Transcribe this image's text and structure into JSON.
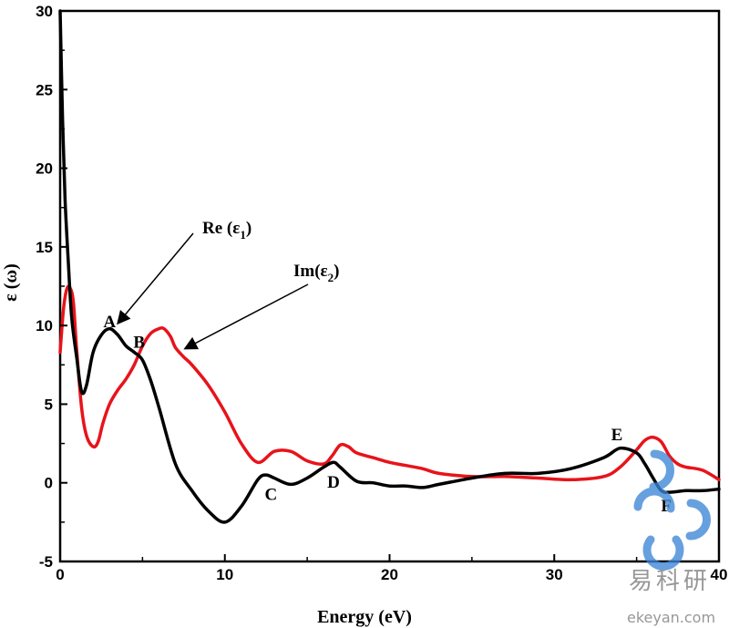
{
  "chart_data": {
    "type": "line",
    "xlabel": "Energy (eV)",
    "ylabel": "ε (ω)",
    "xlim": [
      0,
      40
    ],
    "ylim": [
      -5,
      30
    ],
    "xticks": [
      0,
      10,
      20,
      30,
      40
    ],
    "yticks": [
      -5,
      0,
      5,
      10,
      15,
      20,
      25,
      30
    ],
    "series": [
      {
        "name": "Re (ε1)",
        "color": "#000000",
        "x": [
          0.0,
          0.15,
          0.3,
          0.5,
          0.7,
          1.0,
          1.3,
          1.6,
          2.0,
          2.5,
          3.0,
          3.5,
          4.0,
          4.5,
          5.0,
          5.5,
          6.0,
          7.0,
          8.0,
          9.0,
          10.0,
          11.0,
          12.0,
          12.5,
          13.0,
          14.0,
          15.0,
          16.0,
          16.6,
          17.0,
          18.0,
          19.0,
          20.0,
          21.0,
          22.0,
          23.0,
          25.0,
          27.0,
          29.0,
          31.0,
          33.0,
          34.0,
          35.0,
          35.5,
          36.0,
          36.5,
          37.0,
          38.0,
          39.0,
          40.0
        ],
        "y": [
          30,
          23,
          18,
          14,
          10.5,
          8,
          5.8,
          6.2,
          8.3,
          9.4,
          9.8,
          9.4,
          8.7,
          8.3,
          7.8,
          6.5,
          4.8,
          1.2,
          -0.5,
          -1.8,
          -2.5,
          -1.5,
          0.2,
          0.5,
          0.3,
          -0.1,
          0.3,
          1.0,
          1.3,
          1.0,
          0.1,
          0.0,
          -0.2,
          -0.2,
          -0.3,
          -0.1,
          0.3,
          0.6,
          0.6,
          0.9,
          1.6,
          2.2,
          1.9,
          1.2,
          0.3,
          -0.5,
          -0.6,
          -0.5,
          -0.5,
          -0.4
        ]
      },
      {
        "name": "Im(ε2)",
        "color": "#e8131a",
        "x": [
          0.0,
          0.2,
          0.4,
          0.6,
          0.8,
          1.0,
          1.3,
          1.6,
          2.0,
          2.3,
          2.6,
          3.0,
          3.5,
          4.0,
          4.5,
          5.0,
          5.5,
          6.0,
          6.3,
          6.7,
          7.0,
          7.5,
          8.0,
          9.0,
          10.0,
          11.0,
          12.0,
          13.0,
          14.0,
          15.0,
          16.0,
          16.5,
          17.0,
          17.5,
          18.0,
          19.0,
          20.0,
          21.0,
          22.0,
          23.0,
          25.0,
          27.0,
          29.0,
          31.0,
          33.0,
          34.0,
          35.0,
          35.5,
          36.0,
          36.5,
          37.0,
          37.5,
          38.0,
          39.0,
          40.0
        ],
        "y": [
          8.3,
          11,
          12.3,
          12.4,
          11.5,
          8.5,
          4.8,
          3.0,
          2.3,
          2.6,
          3.8,
          5.0,
          5.9,
          6.6,
          7.5,
          8.7,
          9.5,
          9.8,
          9.8,
          9.3,
          8.6,
          8.0,
          7.5,
          6.2,
          4.5,
          2.5,
          1.3,
          2.0,
          2.0,
          1.4,
          1.2,
          1.7,
          2.4,
          2.3,
          1.9,
          1.6,
          1.3,
          1.1,
          0.9,
          0.6,
          0.4,
          0.4,
          0.3,
          0.2,
          0.4,
          1.0,
          2.1,
          2.7,
          2.9,
          2.6,
          1.7,
          1.2,
          1.0,
          0.8,
          0.2
        ]
      }
    ],
    "annotations": [
      {
        "text": "Re (ε",
        "sub": "1",
        "close": ")"
      },
      {
        "text": "Im(ε",
        "sub": "2",
        "close": ")"
      }
    ],
    "peak_labels": [
      {
        "text": "A",
        "x": 3.0,
        "y": 9.9
      },
      {
        "text": "B",
        "x": 4.8,
        "y": 8.6
      },
      {
        "text": "C",
        "x": 12.8,
        "y": -1.1
      },
      {
        "text": "D",
        "x": 16.6,
        "y": -0.3
      },
      {
        "text": "E",
        "x": 33.8,
        "y": 2.7
      },
      {
        "text": "F",
        "x": 36.8,
        "y": -1.8
      }
    ]
  },
  "watermark": {
    "text": "易科研",
    "subtext": "ekeyan.com",
    "color": "#3d86d6"
  }
}
